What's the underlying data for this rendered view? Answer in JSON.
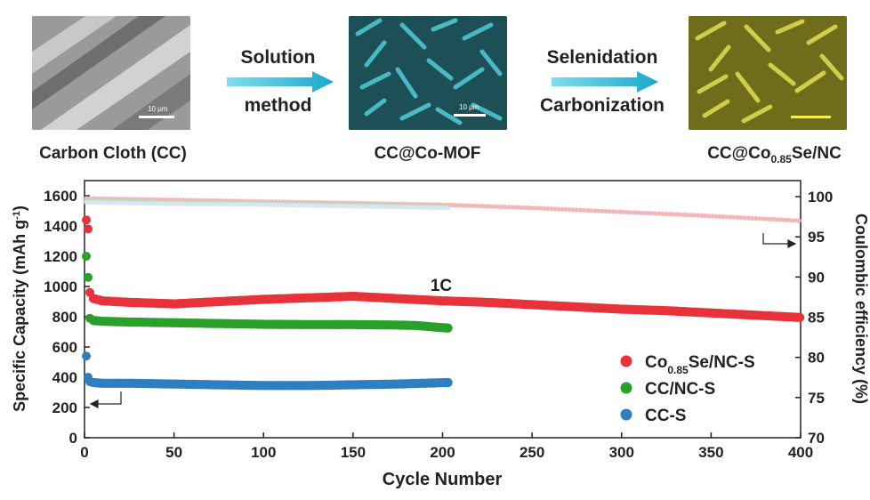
{
  "schematic": {
    "images": [
      {
        "caption": "Carbon Cloth (CC)",
        "scale": "10 μm",
        "color": "#8f8f8f"
      },
      {
        "caption": "CC@Co-MOF",
        "scale": "10 μm",
        "color": "#1f5860"
      },
      {
        "caption_main": "CC@Co",
        "caption_sub": "0.85",
        "caption_tail": "Se/NC",
        "scale": "",
        "color": "#8b8a28"
      }
    ],
    "steps": [
      {
        "line1": "Solution",
        "line2": "method"
      },
      {
        "line1": "Selenidation",
        "line2": "Carbonization"
      }
    ],
    "arrow_color": "#2bb7d3"
  },
  "chart_data": {
    "type": "scatter",
    "xlabel": "Cycle Number",
    "ylabel_left": "Specific Capacity (mAh g",
    "ylabel_left_sup": "-1",
    "ylabel_left_tail": ")",
    "ylabel_right": "Coulombic efficiency (%)",
    "xlim": [
      0,
      400
    ],
    "ylim_left": [
      0,
      1700
    ],
    "ylim_right": [
      70,
      102
    ],
    "x_ticks": [
      0,
      50,
      100,
      150,
      200,
      250,
      300,
      350,
      400
    ],
    "y_ticks_left": [
      0,
      200,
      400,
      600,
      800,
      1000,
      1200,
      1400,
      1600
    ],
    "y_ticks_right": [
      70,
      75,
      80,
      85,
      90,
      95,
      100
    ],
    "annotation": "1C",
    "legend_position": "lower-right",
    "series": [
      {
        "name_main": "Co",
        "name_sub": "0.85",
        "name_tail": "Se/NC-S",
        "color": "#e8323a",
        "capacity": {
          "x": [
            1,
            2,
            3,
            5,
            10,
            25,
            50,
            75,
            100,
            125,
            150,
            175,
            200,
            225,
            250,
            275,
            300,
            325,
            350,
            375,
            400
          ],
          "y": [
            1440,
            1380,
            960,
            920,
            905,
            895,
            885,
            900,
            915,
            925,
            935,
            920,
            905,
            895,
            880,
            865,
            850,
            840,
            825,
            810,
            795
          ]
        },
        "efficiency": {
          "x": [
            1,
            25,
            50,
            100,
            150,
            200,
            250,
            300,
            350,
            375,
            400
          ],
          "y": [
            99.8,
            99.7,
            99.6,
            99.4,
            99.2,
            99.0,
            98.6,
            98.1,
            97.6,
            97.3,
            97.0
          ]
        }
      },
      {
        "name_main": "CC/NC-S",
        "name_sub": "",
        "name_tail": "",
        "color": "#2aa02b",
        "capacity": {
          "x": [
            1,
            2,
            3,
            5,
            10,
            25,
            50,
            75,
            100,
            125,
            150,
            175,
            185,
            203
          ],
          "y": [
            1200,
            1060,
            790,
            775,
            770,
            765,
            760,
            755,
            750,
            748,
            748,
            745,
            742,
            725
          ]
        },
        "efficiency": {
          "x": [
            1,
            50,
            100,
            150,
            203
          ],
          "y": [
            99.5,
            99.3,
            99.2,
            99.0,
            98.8
          ]
        }
      },
      {
        "name_main": "CC-S",
        "name_sub": "",
        "name_tail": "",
        "color": "#2f7fc0",
        "capacity": {
          "x": [
            1,
            2,
            3,
            5,
            10,
            25,
            50,
            75,
            100,
            125,
            150,
            175,
            203
          ],
          "y": [
            540,
            400,
            370,
            365,
            360,
            360,
            355,
            350,
            345,
            345,
            350,
            355,
            365
          ]
        },
        "efficiency": {
          "x": [
            1,
            50,
            100,
            150,
            203
          ],
          "y": [
            99.3,
            99.1,
            99.0,
            98.8,
            98.6
          ]
        }
      }
    ]
  }
}
